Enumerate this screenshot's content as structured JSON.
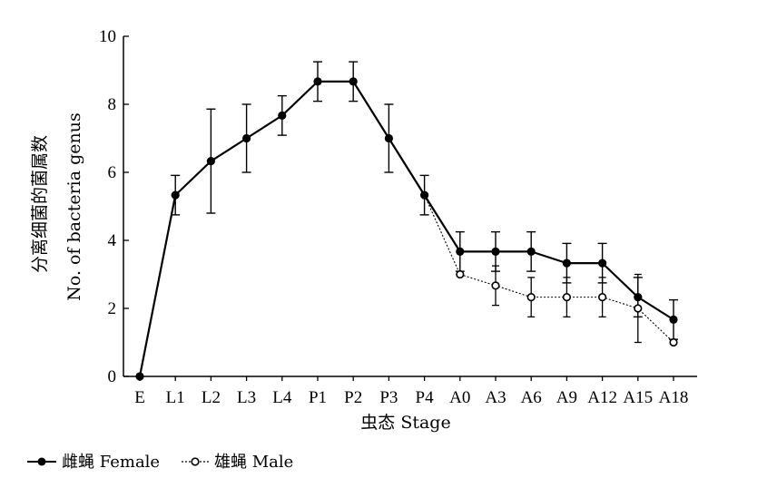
{
  "chart_data": {
    "type": "line",
    "xlabel": "虫态 Stage",
    "ylabel_cn": "分离细菌的菌属数",
    "ylabel_en": "No. of bacteria genus",
    "ylim": [
      0,
      10
    ],
    "yticks": [
      0,
      2,
      4,
      6,
      8,
      10
    ],
    "grid": false,
    "legend_position": "bottom-left",
    "categories": [
      "E",
      "L1",
      "L2",
      "L3",
      "L4",
      "P1",
      "P2",
      "P3",
      "P4",
      "A0",
      "A3",
      "A6",
      "A9",
      "A12",
      "A15",
      "A18"
    ],
    "series": [
      {
        "name": "雌蝇 Female",
        "style": "solid",
        "marker": "filled-circle",
        "color": "#000000",
        "values": [
          0,
          5.33,
          6.33,
          7.0,
          7.67,
          8.67,
          8.67,
          7.0,
          5.33,
          3.67,
          3.67,
          3.67,
          3.33,
          3.33,
          2.33,
          1.67
        ],
        "errors": [
          0,
          0.58,
          1.53,
          1.0,
          0.58,
          0.58,
          0.58,
          1.0,
          0.58,
          0.58,
          0.58,
          0.58,
          0.58,
          0.58,
          0.58,
          0.58
        ]
      },
      {
        "name": "雄蝇 Male",
        "style": "dotted",
        "marker": "open-circle",
        "color": "#000000",
        "start_index": 8,
        "values": [
          null,
          null,
          null,
          null,
          null,
          null,
          null,
          null,
          5.33,
          3.0,
          2.67,
          2.33,
          2.33,
          2.33,
          2.0,
          1.0
        ],
        "errors": [
          null,
          null,
          null,
          null,
          null,
          null,
          null,
          null,
          0,
          0,
          0.58,
          0.58,
          0.58,
          0.58,
          1.0,
          0
        ]
      }
    ]
  }
}
